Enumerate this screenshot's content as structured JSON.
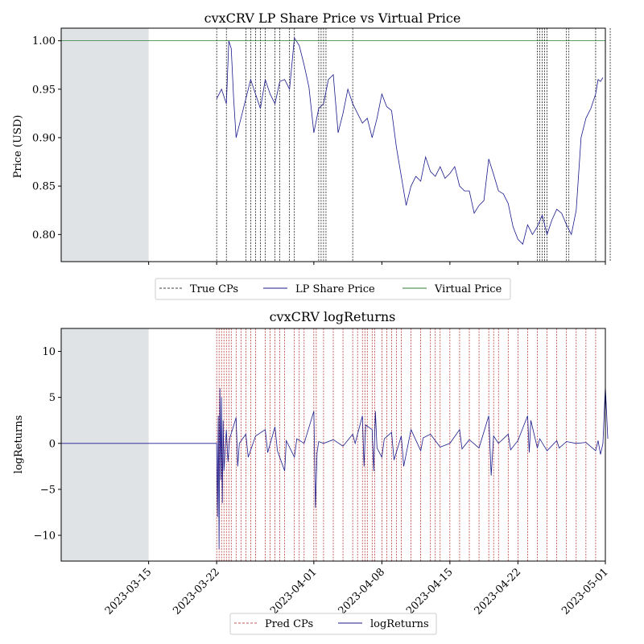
{
  "chart_data": [
    {
      "type": "line",
      "title": "cvxCRV LP Share Price vs Virtual Price",
      "xlabel": "",
      "ylabel": "Price (USD)",
      "ylim": [
        0.772,
        1.013
      ],
      "xlim": [
        "2023-03-06",
        "2023-05-01"
      ],
      "y_ticks": [
        "0.80",
        "0.85",
        "0.90",
        "0.95",
        "1.00"
      ],
      "y_tick_values": [
        0.8,
        0.85,
        0.9,
        0.95,
        1.0
      ],
      "grid": false,
      "shaded_region": {
        "from": "2023-03-06",
        "to": "2023-03-15",
        "color": "#dfe3e6"
      },
      "series": [
        {
          "name": "LP Share Price",
          "color": "#1a1a8c",
          "points": [
            [
              "2023-03-22",
              0.94
            ],
            [
              "2023-03-22T12",
              0.95
            ],
            [
              "2023-03-23",
              0.935
            ],
            [
              "2023-03-23T06",
              1.0
            ],
            [
              "2023-03-23T12",
              0.992
            ],
            [
              "2023-03-23T18",
              0.94
            ],
            [
              "2023-03-24",
              0.9
            ],
            [
              "2023-03-24T12",
              0.92
            ],
            [
              "2023-03-25",
              0.94
            ],
            [
              "2023-03-25T12",
              0.96
            ],
            [
              "2023-03-26",
              0.945
            ],
            [
              "2023-03-26T12",
              0.93
            ],
            [
              "2023-03-27",
              0.96
            ],
            [
              "2023-03-27T12",
              0.945
            ],
            [
              "2023-03-28",
              0.935
            ],
            [
              "2023-03-28T12",
              0.958
            ],
            [
              "2023-03-29",
              0.96
            ],
            [
              "2023-03-29T12",
              0.95
            ],
            [
              "2023-03-30",
              1.003
            ],
            [
              "2023-03-30T12",
              0.995
            ],
            [
              "2023-03-31",
              0.975
            ],
            [
              "2023-03-31T12",
              0.952
            ],
            [
              "2023-04-01",
              0.905
            ],
            [
              "2023-04-01T12",
              0.93
            ],
            [
              "2023-04-02",
              0.935
            ],
            [
              "2023-04-02T12",
              0.96
            ],
            [
              "2023-04-03",
              0.965
            ],
            [
              "2023-04-03T12",
              0.905
            ],
            [
              "2023-04-04",
              0.925
            ],
            [
              "2023-04-04T12",
              0.95
            ],
            [
              "2023-04-05",
              0.935
            ],
            [
              "2023-04-05T12",
              0.925
            ],
            [
              "2023-04-06",
              0.915
            ],
            [
              "2023-04-06T12",
              0.92
            ],
            [
              "2023-04-07",
              0.9
            ],
            [
              "2023-04-07T12",
              0.92
            ],
            [
              "2023-04-08",
              0.945
            ],
            [
              "2023-04-08T12",
              0.932
            ],
            [
              "2023-04-09",
              0.928
            ],
            [
              "2023-04-09T12",
              0.89
            ],
            [
              "2023-04-10",
              0.86
            ],
            [
              "2023-04-10T12",
              0.83
            ],
            [
              "2023-04-11",
              0.85
            ],
            [
              "2023-04-11T12",
              0.86
            ],
            [
              "2023-04-12",
              0.855
            ],
            [
              "2023-04-12T12",
              0.88
            ],
            [
              "2023-04-13",
              0.865
            ],
            [
              "2023-04-13T12",
              0.86
            ],
            [
              "2023-04-14",
              0.87
            ],
            [
              "2023-04-14T12",
              0.858
            ],
            [
              "2023-04-15",
              0.863
            ],
            [
              "2023-04-15T12",
              0.87
            ],
            [
              "2023-04-16",
              0.85
            ],
            [
              "2023-04-16T12",
              0.845
            ],
            [
              "2023-04-17",
              0.845
            ],
            [
              "2023-04-17T12",
              0.822
            ],
            [
              "2023-04-18",
              0.83
            ],
            [
              "2023-04-18T12",
              0.835
            ],
            [
              "2023-04-19",
              0.878
            ],
            [
              "2023-04-19T12",
              0.862
            ],
            [
              "2023-04-20",
              0.845
            ],
            [
              "2023-04-20T12",
              0.842
            ],
            [
              "2023-04-21",
              0.832
            ],
            [
              "2023-04-21T12",
              0.808
            ],
            [
              "2023-04-22",
              0.795
            ],
            [
              "2023-04-22T12",
              0.79
            ],
            [
              "2023-04-23",
              0.81
            ],
            [
              "2023-04-23T12",
              0.8
            ],
            [
              "2023-04-24",
              0.808
            ],
            [
              "2023-04-24T12",
              0.82
            ],
            [
              "2023-04-25",
              0.8
            ],
            [
              "2023-04-25T12",
              0.815
            ],
            [
              "2023-04-26",
              0.826
            ],
            [
              "2023-04-26T12",
              0.822
            ],
            [
              "2023-04-27",
              0.81
            ],
            [
              "2023-04-27T12",
              0.8
            ],
            [
              "2023-04-28",
              0.825
            ],
            [
              "2023-04-28T12",
              0.9
            ],
            [
              "2023-04-29",
              0.92
            ],
            [
              "2023-04-29T12",
              0.93
            ],
            [
              "2023-04-30",
              0.945
            ],
            [
              "2023-04-30T06",
              0.96
            ],
            [
              "2023-04-30T12",
              0.958
            ],
            [
              "2023-04-30T18",
              0.962
            ]
          ]
        },
        {
          "name": "Virtual Price",
          "color": "#2e7d32",
          "points": [
            [
              "2023-03-06",
              1.0
            ],
            [
              "2023-05-01",
              1.0
            ]
          ]
        }
      ],
      "vlines": {
        "name": "True CPs",
        "color": "#000000",
        "x": [
          "2023-03-22",
          "2023-03-23",
          "2023-03-25",
          "2023-03-25T12",
          "2023-03-26",
          "2023-03-26T12",
          "2023-03-27",
          "2023-03-28",
          "2023-03-28T12",
          "2023-03-29T12",
          "2023-03-30",
          "2023-04-01T12",
          "2023-04-01T18",
          "2023-04-02",
          "2023-04-02T06",
          "2023-04-05",
          "2023-04-24",
          "2023-04-24T06",
          "2023-04-24T12",
          "2023-04-24T18",
          "2023-04-25",
          "2023-04-27",
          "2023-04-27T06",
          "2023-04-30",
          "2023-05-01T12"
        ]
      },
      "legend": {
        "placement": "below",
        "entries": [
          "True CPs",
          "LP Share Price",
          "Virtual Price"
        ]
      }
    },
    {
      "type": "line",
      "title": "cvxCRV logReturns",
      "xlabel": "",
      "ylabel": "logReturns",
      "ylim": [
        -12.8,
        12.5
      ],
      "xlim": [
        "2023-03-06",
        "2023-05-01"
      ],
      "y_ticks": [
        "−10",
        "−5",
        "0",
        "5",
        "10"
      ],
      "y_tick_values": [
        -10,
        -5,
        0,
        5,
        10
      ],
      "x_ticks": [
        "2023-03-15",
        "2023-03-22",
        "2023-04-01",
        "2023-04-08",
        "2023-04-15",
        "2023-04-22",
        "2023-05-01"
      ],
      "grid": false,
      "shaded_region": {
        "from": "2023-03-06",
        "to": "2023-03-15",
        "color": "#dfe3e6"
      },
      "series": [
        {
          "name": "logReturns",
          "color": "#1a1a8c",
          "points": [
            [
              "2023-03-06",
              0
            ],
            [
              "2023-03-22",
              0
            ],
            [
              "2023-03-22T02",
              -8.0
            ],
            [
              "2023-03-22T04",
              3.0
            ],
            [
              "2023-03-22T06",
              -11.5
            ],
            [
              "2023-03-22T08",
              6.0
            ],
            [
              "2023-03-22T10",
              -4.0
            ],
            [
              "2023-03-22T12",
              5.0
            ],
            [
              "2023-03-22T14",
              -6.5
            ],
            [
              "2023-03-22T16",
              2.5
            ],
            [
              "2023-03-22T18",
              -3.0
            ],
            [
              "2023-03-23",
              1.5
            ],
            [
              "2023-03-23T04",
              -2.0
            ],
            [
              "2023-03-23T08",
              0.5
            ],
            [
              "2023-03-24",
              2.8
            ],
            [
              "2023-03-24T04",
              -2.5
            ],
            [
              "2023-03-24T08",
              0.0
            ],
            [
              "2023-03-25",
              1.0
            ],
            [
              "2023-03-25T06",
              -1.5
            ],
            [
              "2023-03-26",
              0.8
            ],
            [
              "2023-03-27",
              1.5
            ],
            [
              "2023-03-27T06",
              -1.0
            ],
            [
              "2023-03-28",
              1.8
            ],
            [
              "2023-03-28T06",
              -0.8
            ],
            [
              "2023-03-29",
              -3.0
            ],
            [
              "2023-03-29T04",
              0.3
            ],
            [
              "2023-03-30",
              -1.5
            ],
            [
              "2023-03-30T06",
              0.5
            ],
            [
              "2023-03-31",
              0.0
            ],
            [
              "2023-04-01",
              3.5
            ],
            [
              "2023-04-01T04",
              -7.0
            ],
            [
              "2023-04-01T08",
              -1.0
            ],
            [
              "2023-04-01T12",
              0.2
            ],
            [
              "2023-04-02",
              0.0
            ],
            [
              "2023-04-03",
              0.4
            ],
            [
              "2023-04-04",
              -0.3
            ],
            [
              "2023-04-05",
              1.0
            ],
            [
              "2023-04-05T06",
              0.0
            ],
            [
              "2023-04-06",
              3.0
            ],
            [
              "2023-04-06T04",
              -2.5
            ],
            [
              "2023-04-06T08",
              2.0
            ],
            [
              "2023-04-07",
              1.5
            ],
            [
              "2023-04-07T04",
              -3.0
            ],
            [
              "2023-04-07T08",
              3.5
            ],
            [
              "2023-04-07T12",
              -0.5
            ],
            [
              "2023-04-08",
              -1.5
            ],
            [
              "2023-04-08T06",
              0.5
            ],
            [
              "2023-04-09",
              1.2
            ],
            [
              "2023-04-09T06",
              -1.8
            ],
            [
              "2023-04-10",
              0.8
            ],
            [
              "2023-04-10T06",
              -2.5
            ],
            [
              "2023-04-11",
              1.5
            ],
            [
              "2023-04-12",
              -0.8
            ],
            [
              "2023-04-12T06",
              0.6
            ],
            [
              "2023-04-13",
              1.0
            ],
            [
              "2023-04-14",
              -0.4
            ],
            [
              "2023-04-15",
              0.0
            ],
            [
              "2023-04-16",
              1.5
            ],
            [
              "2023-04-16T06",
              -0.6
            ],
            [
              "2023-04-17",
              0.4
            ],
            [
              "2023-04-18",
              -0.5
            ],
            [
              "2023-04-19",
              3.0
            ],
            [
              "2023-04-19T06",
              -3.5
            ],
            [
              "2023-04-19T12",
              0.8
            ],
            [
              "2023-04-20",
              0.0
            ],
            [
              "2023-04-21",
              1.0
            ],
            [
              "2023-04-21T06",
              -0.7
            ],
            [
              "2023-04-22",
              0.3
            ],
            [
              "2023-04-23",
              3.0
            ],
            [
              "2023-04-23T04",
              -1.0
            ],
            [
              "2023-04-23T08",
              2.5
            ],
            [
              "2023-04-24",
              -0.5
            ],
            [
              "2023-04-24T06",
              0.5
            ],
            [
              "2023-04-25",
              -0.8
            ],
            [
              "2023-04-26",
              0.3
            ],
            [
              "2023-04-26T06",
              -0.5
            ],
            [
              "2023-04-27",
              0.2
            ],
            [
              "2023-04-28",
              0.0
            ],
            [
              "2023-04-29",
              0.1
            ],
            [
              "2023-04-30",
              -0.8
            ],
            [
              "2023-04-30T06",
              0.3
            ],
            [
              "2023-04-30T12",
              -1.2
            ],
            [
              "2023-04-30T18",
              0.0
            ],
            [
              "2023-05-01",
              6.2
            ],
            [
              "2023-05-01T06",
              0.5
            ]
          ]
        }
      ],
      "vlines": {
        "name": "Pred CPs",
        "color": "#b22222",
        "x": [
          "2023-03-22",
          "2023-03-22T06",
          "2023-03-22T12",
          "2023-03-22T18",
          "2023-03-23",
          "2023-03-23T06",
          "2023-03-23T12",
          "2023-03-24",
          "2023-03-24T12",
          "2023-03-25",
          "2023-03-25T12",
          "2023-03-26",
          "2023-03-27",
          "2023-03-27T12",
          "2023-03-28",
          "2023-03-28T12",
          "2023-03-29",
          "2023-03-30",
          "2023-03-30T12",
          "2023-03-31",
          "2023-04-01",
          "2023-04-01T06",
          "2023-04-02",
          "2023-04-03",
          "2023-04-04",
          "2023-04-05",
          "2023-04-05T12",
          "2023-04-06",
          "2023-04-06T06",
          "2023-04-06T12",
          "2023-04-07",
          "2023-04-07T06",
          "2023-04-08",
          "2023-04-08T12",
          "2023-04-09",
          "2023-04-09T12",
          "2023-04-10",
          "2023-04-11",
          "2023-04-12",
          "2023-04-13",
          "2023-04-13T12",
          "2023-04-14",
          "2023-04-15",
          "2023-04-16",
          "2023-04-17",
          "2023-04-18",
          "2023-04-19",
          "2023-04-19T12",
          "2023-04-20",
          "2023-04-21",
          "2023-04-22",
          "2023-04-23",
          "2023-04-24",
          "2023-04-25",
          "2023-04-26",
          "2023-04-27",
          "2023-04-28",
          "2023-04-29",
          "2023-04-30",
          "2023-05-01"
        ]
      },
      "legend": {
        "placement": "bottom-center",
        "entries": [
          "Pred CPs",
          "logReturns"
        ]
      }
    }
  ]
}
